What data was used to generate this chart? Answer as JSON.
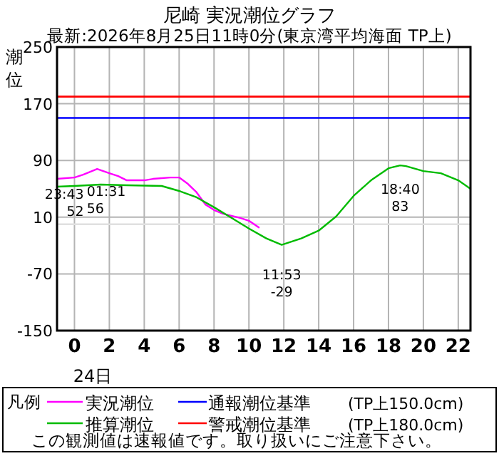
{
  "chart_data": {
    "type": "line",
    "title": "尼崎 実況潮位グラフ",
    "subtitle": "最新:2026年8月25日11時0分(東京湾平均海面 TP上)",
    "ylabel": "潮位",
    "legend_title": "凡例",
    "xlim": [
      -1,
      22.7
    ],
    "xticks": [
      0,
      2,
      4,
      6,
      8,
      10,
      12,
      14,
      16,
      18,
      20,
      22
    ],
    "ylim": [
      -150,
      250
    ],
    "yticks": [
      -150,
      -70,
      10,
      90,
      170,
      250
    ],
    "grid": true,
    "legend": "bottom",
    "series": [
      {
        "name": "実況潮位",
        "color": "#ff00ff",
        "x": [
          -1,
          0,
          0.5,
          1.3,
          2,
          2.5,
          3,
          4,
          4.5,
          5.5,
          6,
          6.5,
          7,
          7.5,
          8,
          8.5,
          9,
          9.5,
          10,
          10.3,
          10.6
        ],
        "values": [
          64,
          66,
          70,
          78,
          72,
          68,
          62,
          62,
          64,
          66,
          66,
          57,
          45,
          28,
          20,
          15,
          12,
          9,
          5,
          0,
          -5
        ]
      },
      {
        "name": "推算潮位",
        "color": "#00bb00",
        "x": [
          -1,
          0,
          1.5,
          3,
          5,
          6,
          7,
          8,
          9,
          10,
          11,
          11.88,
          13,
          14,
          15,
          16,
          17,
          18,
          18.67,
          19,
          20,
          21,
          22,
          22.7
        ],
        "values": [
          53,
          54,
          56,
          55,
          54,
          47,
          38,
          24,
          9,
          -6,
          -20,
          -29,
          -20,
          -9,
          11,
          40,
          62,
          79,
          83,
          82,
          75,
          72,
          62,
          50
        ]
      }
    ],
    "ref_lines": [
      {
        "axis": "y",
        "value": 150,
        "label": "通報潮位基準",
        "color": "#0000ff"
      },
      {
        "axis": "y",
        "value": 180,
        "label": "警戒潮位基準",
        "color": "#ff0000"
      },
      {
        "axis": "y",
        "value": 0,
        "color": "#e0e0e0"
      }
    ],
    "annotations": [
      {
        "text": "23:43\n52",
        "x": -0.28,
        "y": 52
      },
      {
        "text": "01:31\n56",
        "x": 1.52,
        "y": 56
      },
      {
        "text": "11:53\n-29",
        "x": 11.88,
        "y": -29
      },
      {
        "text": "18:40\n83",
        "x": 18.67,
        "y": 83
      },
      "24日",
      "(TP上150.0cm)",
      "(TP上180.0cm)",
      "この観測値は速報値です。取り扱いにご注意下さい。"
    ]
  }
}
